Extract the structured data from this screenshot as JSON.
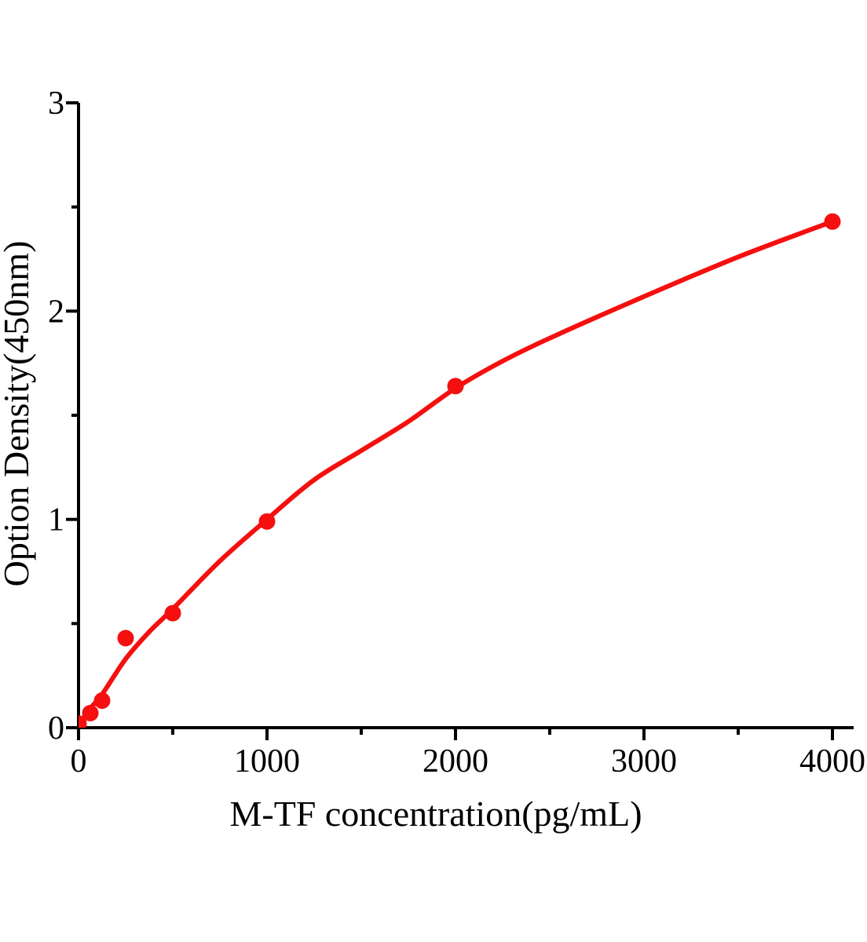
{
  "chart_data": {
    "type": "scatter",
    "title": "",
    "xlabel": "M-TF concentration(pg/mL)",
    "ylabel": "Option Density(450nm)",
    "x": [
      0,
      62.5,
      125,
      250,
      500,
      1000,
      2000,
      4000
    ],
    "values": [
      0.02,
      0.07,
      0.13,
      0.43,
      0.55,
      0.99,
      1.64,
      2.43
    ],
    "fit_curve": [
      [
        0,
        0.01
      ],
      [
        60,
        0.09
      ],
      [
        125,
        0.16
      ],
      [
        250,
        0.33
      ],
      [
        375,
        0.46
      ],
      [
        500,
        0.57
      ],
      [
        750,
        0.8
      ],
      [
        1000,
        1.0
      ],
      [
        1250,
        1.19
      ],
      [
        1500,
        1.33
      ],
      [
        1750,
        1.47
      ],
      [
        2000,
        1.63
      ],
      [
        2250,
        1.76
      ],
      [
        2500,
        1.87
      ],
      [
        3000,
        2.07
      ],
      [
        3500,
        2.26
      ],
      [
        4000,
        2.43
      ]
    ],
    "xlim": [
      0,
      4000
    ],
    "ylim": [
      0,
      3
    ],
    "x_major_ticks": [
      0,
      1000,
      2000,
      3000,
      4000
    ],
    "x_minor_ticks": [
      500,
      1500,
      2500,
      3500
    ],
    "y_major_ticks": [
      0,
      1,
      2,
      3
    ],
    "y_minor_ticks": [
      0.5,
      1.5,
      2.5
    ],
    "x_tick_labels": [
      "0",
      "1000",
      "2000",
      "3000",
      "4000"
    ],
    "y_tick_labels": [
      "0",
      "1",
      "2",
      "3"
    ],
    "grid": false,
    "legend": "none",
    "marker": "filled-circle",
    "colors": {
      "series": "#f50f0f",
      "axis": "#000000",
      "text": "#000000",
      "background": "#ffffff"
    }
  }
}
